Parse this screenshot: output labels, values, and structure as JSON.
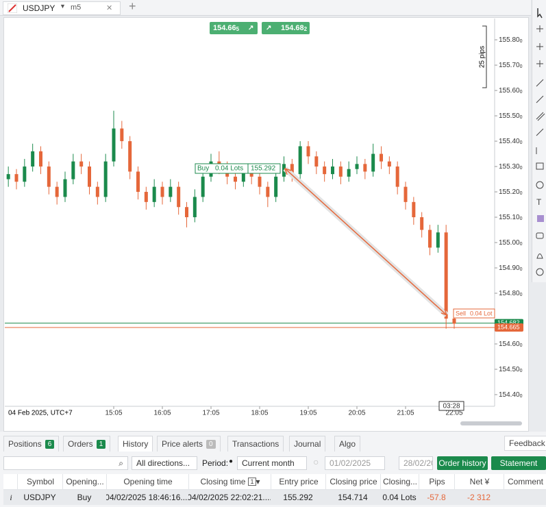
{
  "tab": {
    "symbol": "USDJPY",
    "timeframe": "m5"
  },
  "quotes": {
    "bid": 154.665,
    "ask": 154.682
  },
  "chart_data": {
    "type": "candlestick",
    "date_label": "04 Feb 2025, UTC+7",
    "x": [
      "12:55",
      "13:05",
      "13:15",
      "13:25",
      "13:35",
      "13:45",
      "13:55",
      "14:05",
      "14:15",
      "14:25",
      "14:35",
      "14:45",
      "14:55",
      "15:05",
      "15:15",
      "15:25",
      "15:35",
      "15:45",
      "15:55",
      "16:05",
      "16:15",
      "16:25",
      "16:35",
      "16:45",
      "16:55",
      "17:05",
      "17:15",
      "17:25",
      "17:35",
      "17:45",
      "17:55",
      "18:05",
      "18:15",
      "18:25",
      "18:35",
      "18:45",
      "18:55",
      "19:05",
      "19:15",
      "19:25",
      "19:35",
      "19:45",
      "19:55",
      "20:05",
      "20:15",
      "20:25",
      "20:35",
      "20:45",
      "20:55",
      "21:05",
      "21:15",
      "21:25",
      "21:35",
      "21:45",
      "21:55",
      "22:05"
    ],
    "candles": [
      [
        155.25,
        155.3,
        155.22,
        155.27
      ],
      [
        155.27,
        155.29,
        155.21,
        155.24
      ],
      [
        155.24,
        155.33,
        155.22,
        155.3
      ],
      [
        155.3,
        155.39,
        155.28,
        155.36
      ],
      [
        155.36,
        155.38,
        155.27,
        155.3
      ],
      [
        155.3,
        155.32,
        155.19,
        155.22
      ],
      [
        155.22,
        155.24,
        155.15,
        155.18
      ],
      [
        155.18,
        155.28,
        155.16,
        155.25
      ],
      [
        155.25,
        155.35,
        155.23,
        155.32
      ],
      [
        155.32,
        155.35,
        155.27,
        155.3
      ],
      [
        155.3,
        155.32,
        155.19,
        155.22
      ],
      [
        155.22,
        155.24,
        155.15,
        155.18
      ],
      [
        155.18,
        155.35,
        155.16,
        155.32
      ],
      [
        155.32,
        155.52,
        155.3,
        155.45
      ],
      [
        155.45,
        155.48,
        155.37,
        155.4
      ],
      [
        155.4,
        155.42,
        155.25,
        155.28
      ],
      [
        155.28,
        155.3,
        155.17,
        155.2
      ],
      [
        155.2,
        155.22,
        155.13,
        155.16
      ],
      [
        155.16,
        155.25,
        155.14,
        155.22
      ],
      [
        155.22,
        155.24,
        155.15,
        155.18
      ],
      [
        155.18,
        155.25,
        155.16,
        155.22
      ],
      [
        155.22,
        155.24,
        155.11,
        155.14
      ],
      [
        155.14,
        155.16,
        155.06,
        155.1
      ],
      [
        155.1,
        155.21,
        155.08,
        155.18
      ],
      [
        155.18,
        155.29,
        155.16,
        155.26
      ],
      [
        155.26,
        155.35,
        155.24,
        155.32
      ],
      [
        155.32,
        155.36,
        155.27,
        155.3
      ],
      [
        155.3,
        155.32,
        155.23,
        155.26
      ],
      [
        155.26,
        155.28,
        155.21,
        155.24
      ],
      [
        155.24,
        155.31,
        155.22,
        155.28
      ],
      [
        155.28,
        155.3,
        155.23,
        155.26
      ],
      [
        155.26,
        155.28,
        155.19,
        155.22
      ],
      [
        155.22,
        155.24,
        155.14,
        155.18
      ],
      [
        155.18,
        155.29,
        155.16,
        155.26
      ],
      [
        155.26,
        155.34,
        155.24,
        155.31
      ],
      [
        155.31,
        155.33,
        155.24,
        155.27
      ],
      [
        155.27,
        155.4,
        155.25,
        155.38
      ],
      [
        155.38,
        155.4,
        155.31,
        155.34
      ],
      [
        155.34,
        155.36,
        155.27,
        155.3
      ],
      [
        155.3,
        155.32,
        155.24,
        155.27
      ],
      [
        155.27,
        155.33,
        155.25,
        155.3
      ],
      [
        155.3,
        155.32,
        155.23,
        155.26
      ],
      [
        155.26,
        155.32,
        155.24,
        155.29
      ],
      [
        155.29,
        155.34,
        155.27,
        155.31
      ],
      [
        155.31,
        155.33,
        155.25,
        155.28
      ],
      [
        155.28,
        155.39,
        155.26,
        155.35
      ],
      [
        155.35,
        155.38,
        155.29,
        155.32
      ],
      [
        155.32,
        155.34,
        155.27,
        155.3
      ],
      [
        155.3,
        155.32,
        155.19,
        155.22
      ],
      [
        155.22,
        155.24,
        155.13,
        155.16
      ],
      [
        155.16,
        155.18,
        155.07,
        155.1
      ],
      [
        155.1,
        155.12,
        155.02,
        155.05
      ],
      [
        155.05,
        155.07,
        154.95,
        154.98
      ],
      [
        154.98,
        155.07,
        154.96,
        155.04
      ],
      [
        155.04,
        155.07,
        154.66,
        154.7
      ],
      [
        154.7,
        154.73,
        154.66,
        154.68
      ]
    ],
    "up_color": "#1b8a4c",
    "down_color": "#e5673a",
    "ylim": [
      154.354,
      155.884
    ],
    "yticks": [
      {
        "value": 155.8,
        "label": "155.800"
      },
      {
        "value": 155.7,
        "label": "155.700"
      },
      {
        "value": 155.6,
        "label": "155.600"
      },
      {
        "value": 155.5,
        "label": "155.500"
      },
      {
        "value": 155.4,
        "label": "155.400"
      },
      {
        "value": 155.3,
        "label": "155.300"
      },
      {
        "value": 155.2,
        "label": "155.200"
      },
      {
        "value": 155.1,
        "label": "155.100"
      },
      {
        "value": 155,
        "label": "155.000"
      },
      {
        "value": 154.9,
        "label": "154.900"
      },
      {
        "value": 154.8,
        "label": "154.800"
      },
      {
        "value": 154.6,
        "label": "154.600"
      },
      {
        "value": 154.5,
        "label": "154.500"
      },
      {
        "value": 154.4,
        "label": "154.400"
      }
    ],
    "xticks": [
      "15:05",
      "16:05",
      "17:05",
      "18:05",
      "19:05",
      "20:05",
      "21:05",
      "22:05"
    ],
    "ruler_label": "25 pips",
    "buy_label": {
      "side": "Buy",
      "lots": "0.04 Lots",
      "price": 155.292
    },
    "sell_label": {
      "side": "Sell",
      "lots": "0.04 Lot"
    },
    "price_lines": [
      {
        "value": 154.682,
        "color": "#1b8a4c"
      },
      {
        "value": 154.665,
        "color": "#e5673a"
      }
    ],
    "cursor_time": "03:28"
  },
  "panel_tabs": [
    {
      "label": "Positions",
      "count": 6
    },
    {
      "label": "Orders",
      "count": 1
    },
    {
      "label": "History"
    },
    {
      "label": "Price alerts",
      "count": 0
    },
    {
      "label": "Transactions"
    },
    {
      "label": "Journal"
    },
    {
      "label": "Algo"
    }
  ],
  "feedback": "Feedback",
  "filters": {
    "direction": "All directions...",
    "period_label": "Period:",
    "period": "Current month",
    "from": "01/02/2025",
    "to": "28/02/20",
    "order_history": "Order history",
    "statement": "Statement"
  },
  "table": {
    "columns": [
      "Symbol",
      "Opening...",
      "Opening time",
      "Closing time",
      "Entry price",
      "Closing price",
      "Closing...",
      "Pips",
      "Net ¥",
      "Comment"
    ],
    "sort_index": "1",
    "rows": [
      [
        "USDJPY",
        "Buy",
        "04/02/2025 18:46:16....",
        "04/02/2025 22:02:21....",
        155.292,
        154.714,
        "0.04 Lots",
        -57.8,
        "-2 312"
      ]
    ]
  }
}
